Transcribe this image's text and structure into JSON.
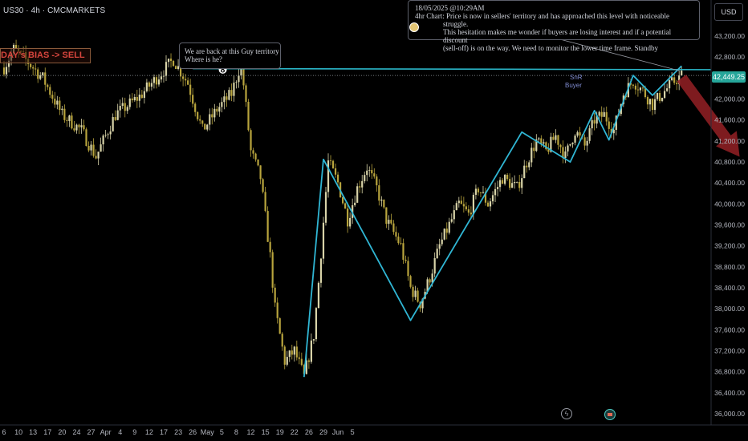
{
  "header": {
    "symbol": "US30 · 4h · CMCMARKETS",
    "currency_button": "USD"
  },
  "labels": {
    "bias": "DAY’s BIAS -> SELL",
    "note1": [
      "We are back at this Guy territory",
      "Where is he?"
    ],
    "note1_marker": "8",
    "note2_title": "18/05/2025 @10:29AM",
    "note2_lines": [
      "4hr Chart: Price is now in sellers' territory and has approached this level with noticeable struggle.",
      "This hesitation makes me wonder if buyers are losing interest and if a potential discount",
      "(sell-off) is on the way. We need to monitor the lower time frame. Standby"
    ],
    "snr": "SnR",
    "buyer": "Buyer",
    "price_tag": "42,449.25"
  },
  "colors": {
    "bull": "#d8d3a8",
    "bear": "#b8a43d",
    "zigzag": "#30b6d4",
    "resistance": "#2ab6c8",
    "arrow": "#8f1f23",
    "axis_text": "#b2b5be"
  },
  "chart_data": {
    "type": "candlestick",
    "instrument": "US30",
    "timeframe": "4h",
    "y_axis": {
      "ticks": [
        43200,
        42800,
        42400,
        42000,
        41600,
        41200,
        40800,
        40400,
        40000,
        39600,
        39200,
        38800,
        38400,
        38000,
        37600,
        37200,
        36800,
        36400,
        36000
      ],
      "tick_labels": [
        "43,200.00",
        "42,800.00",
        "42,400.00",
        "42,000.00",
        "41,600.00",
        "41,200.00",
        "40,800.00",
        "40,400.00",
        "40,000.00",
        "39,600.00",
        "39,200.00",
        "38,800.00",
        "38,400.00",
        "38,000.00",
        "37,600.00",
        "37,200.00",
        "36,800.00",
        "36,400.00",
        "36,000.00"
      ],
      "range": [
        35900,
        43350
      ]
    },
    "x_axis": {
      "tick_labels": [
        "6",
        "10",
        "13",
        "17",
        "20",
        "24",
        "27",
        "Apr",
        "4",
        "9",
        "12",
        "17",
        "23",
        "26",
        "May",
        "5",
        "8",
        "12",
        "15",
        "19",
        "22",
        "26",
        "29",
        "Jun",
        "5"
      ],
      "tick_index": [
        0,
        6,
        12,
        18,
        24,
        30,
        36,
        42,
        48,
        54,
        60,
        66,
        72,
        78,
        84,
        90,
        96,
        102,
        108,
        114,
        120,
        126,
        132,
        138,
        144
      ]
    },
    "path": [
      [
        0,
        42600
      ],
      [
        2,
        42950
      ],
      [
        5,
        42700
      ],
      [
        8,
        42400
      ],
      [
        12,
        41700
      ],
      [
        16,
        41400
      ],
      [
        19,
        40900
      ],
      [
        23,
        41700
      ],
      [
        28,
        42050
      ],
      [
        32,
        42450
      ],
      [
        35,
        42750
      ],
      [
        38,
        42300
      ],
      [
        41,
        41400
      ],
      [
        44,
        41800
      ],
      [
        47,
        42100
      ],
      [
        49,
        42700
      ],
      [
        51,
        41000
      ],
      [
        53,
        40500
      ],
      [
        55,
        39000
      ],
      [
        56,
        38000
      ],
      [
        58,
        37000
      ],
      [
        60,
        37200
      ],
      [
        62,
        36700
      ],
      [
        64,
        37500
      ],
      [
        65,
        38500
      ],
      [
        67,
        40800
      ],
      [
        69,
        40400
      ],
      [
        71,
        39700
      ],
      [
        73,
        40300
      ],
      [
        75,
        40700
      ],
      [
        77,
        40300
      ],
      [
        79,
        39700
      ],
      [
        82,
        39200
      ],
      [
        84,
        38400
      ],
      [
        86,
        38100
      ],
      [
        88,
        38600
      ],
      [
        90,
        39200
      ],
      [
        92,
        39600
      ],
      [
        94,
        40000
      ],
      [
        96,
        39800
      ],
      [
        98,
        40300
      ],
      [
        100,
        40000
      ],
      [
        103,
        40500
      ],
      [
        106,
        40300
      ],
      [
        108,
        40800
      ],
      [
        110,
        41200
      ],
      [
        112,
        41000
      ],
      [
        114,
        41300
      ],
      [
        116,
        40900
      ],
      [
        118,
        41400
      ],
      [
        120,
        41100
      ],
      [
        122,
        41600
      ],
      [
        124,
        41700
      ],
      [
        126,
        41400
      ],
      [
        128,
        42100
      ],
      [
        130,
        42350
      ],
      [
        132,
        42150
      ],
      [
        134,
        41900
      ],
      [
        136,
        42100
      ],
      [
        138,
        42300
      ],
      [
        140,
        42450
      ]
    ],
    "last_price": 42449.25,
    "resistance": {
      "level": 42560
    },
    "zigzag": [
      [
        62,
        36700
      ],
      [
        66,
        40850
      ],
      [
        84,
        37780
      ],
      [
        107,
        41370
      ],
      [
        117,
        40800
      ],
      [
        122,
        41780
      ],
      [
        125,
        41220
      ],
      [
        130,
        42450
      ],
      [
        134,
        42070
      ],
      [
        140,
        42630
      ]
    ],
    "projection_arrow": {
      "from": [
        140,
        42400
      ],
      "to": [
        152,
        40900
      ]
    }
  }
}
